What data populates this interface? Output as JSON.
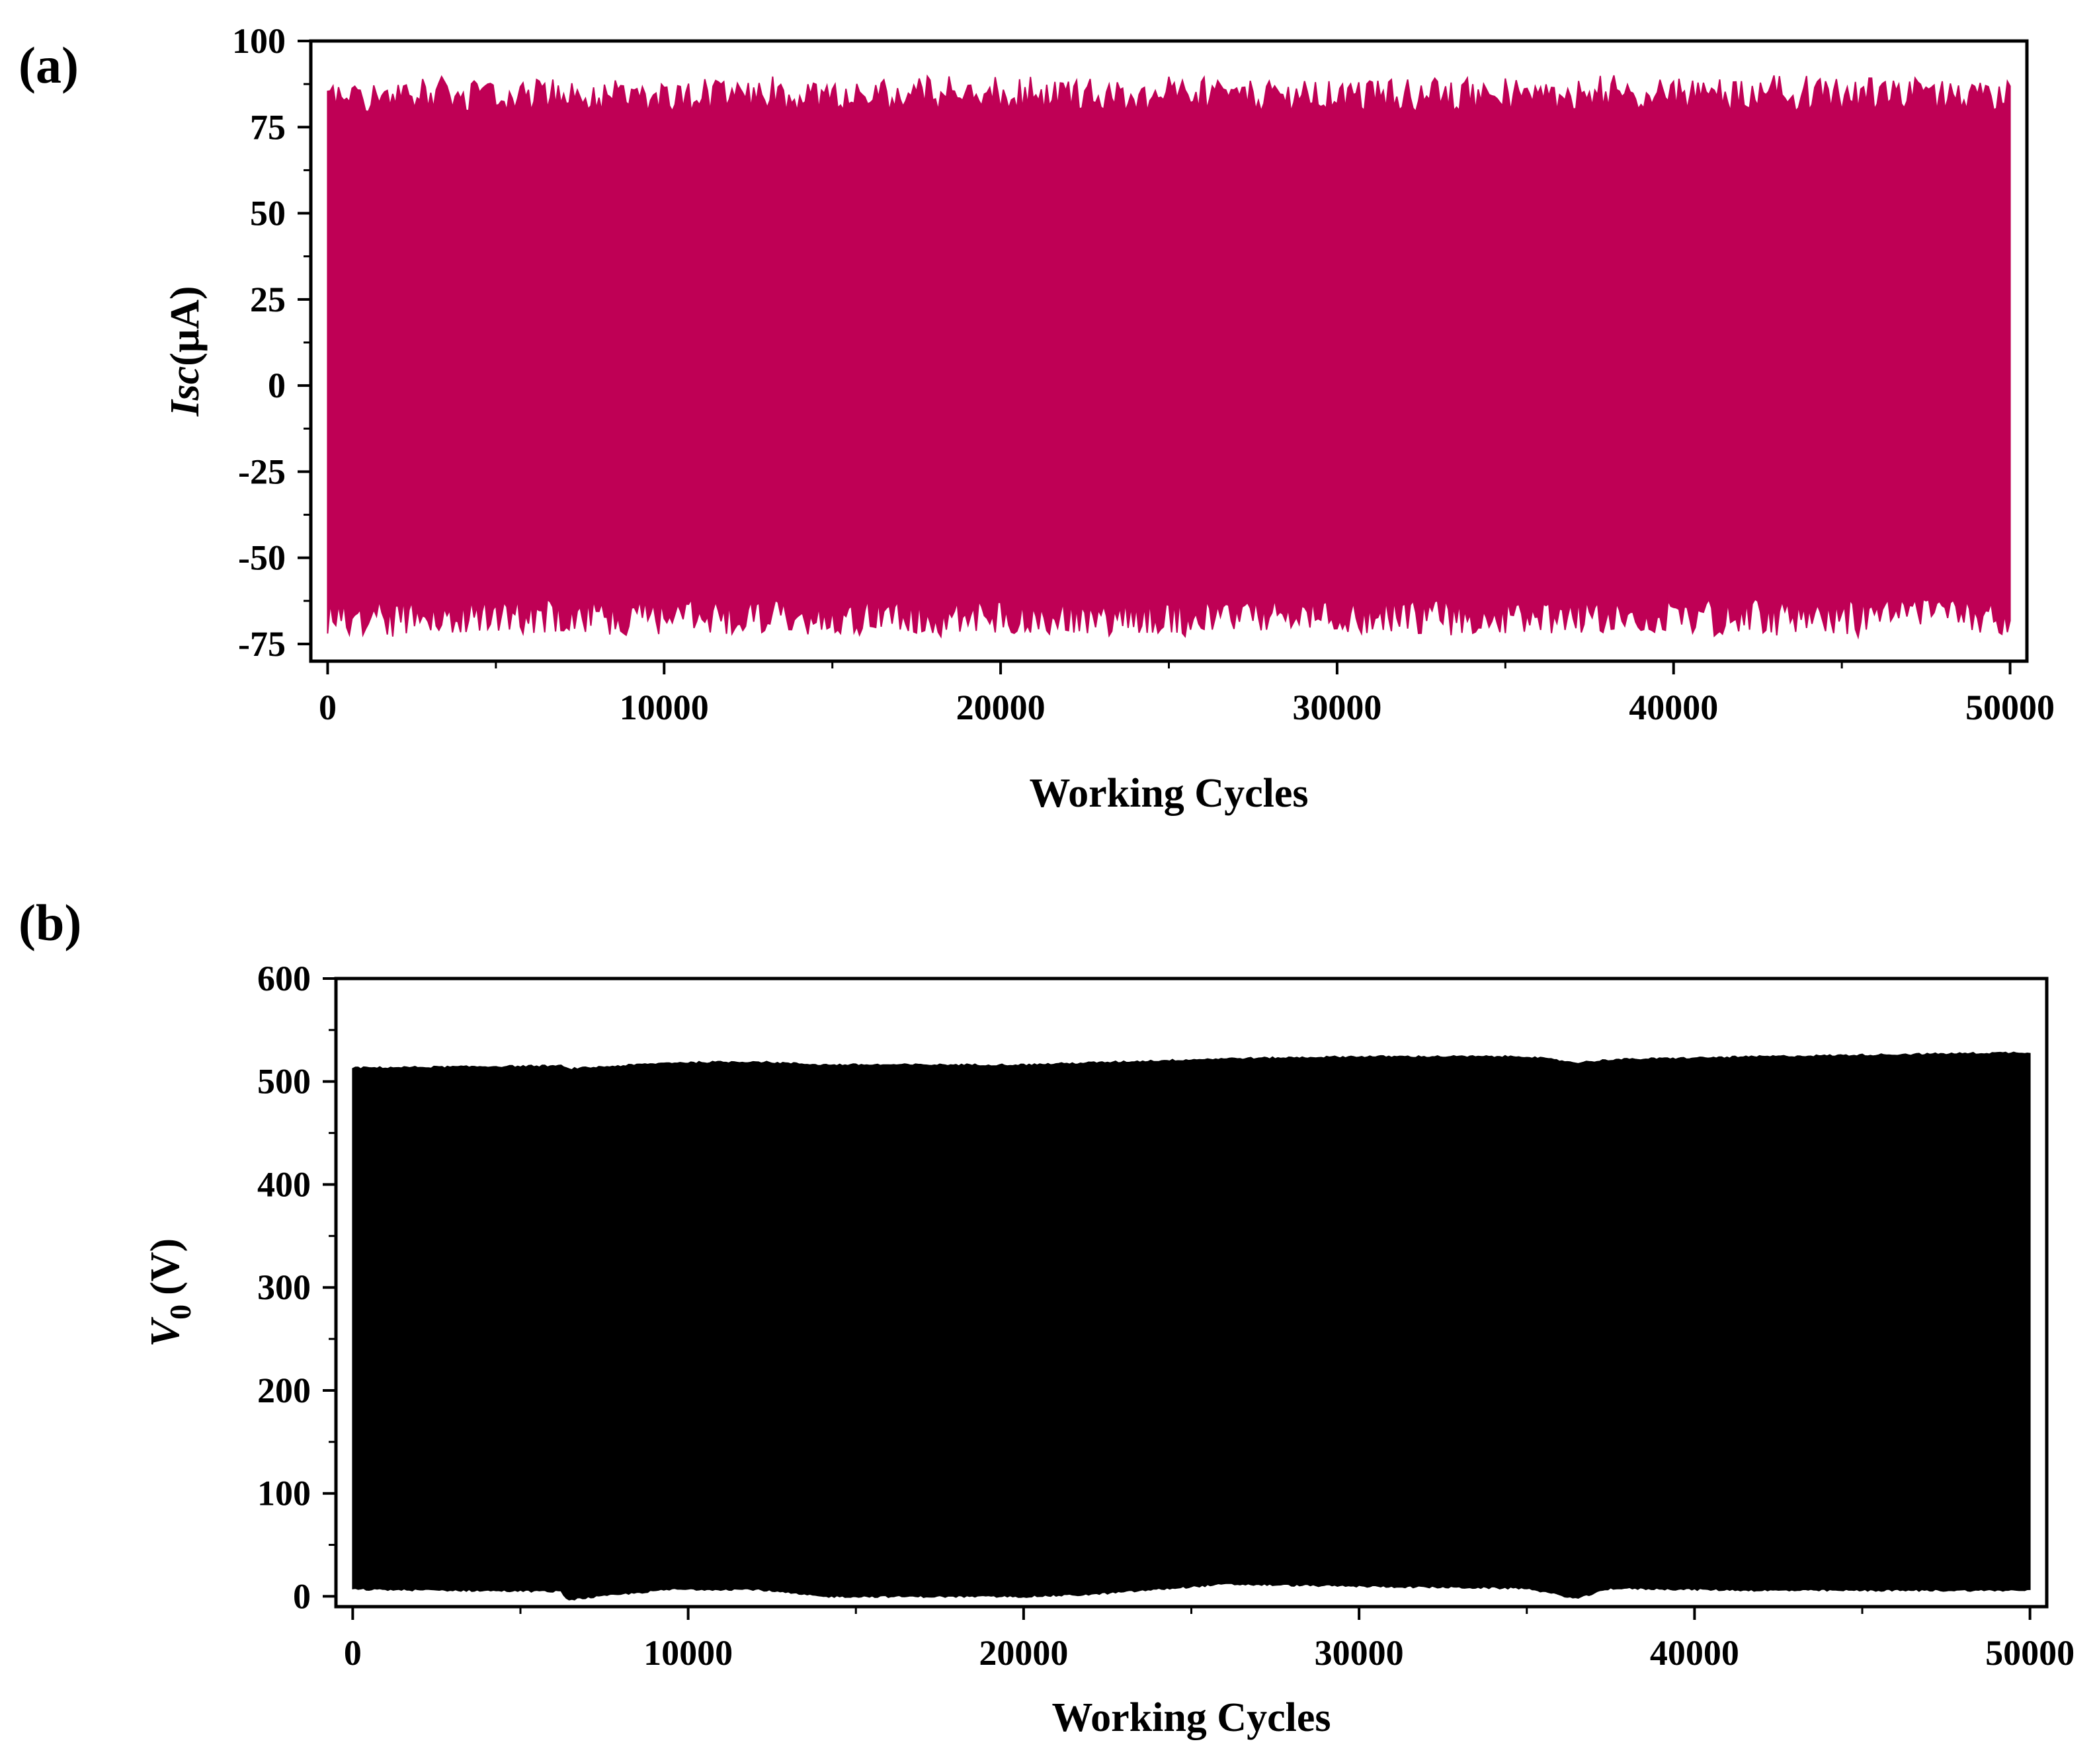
{
  "chart_data": [
    {
      "panel": "(a)",
      "type": "line",
      "title": "",
      "xlabel": "Working Cycles",
      "ylabel": {
        "main": "Isc",
        "unit": "(μA)"
      },
      "xlim": [
        -500,
        50500
      ],
      "ylim": [
        -80,
        100
      ],
      "xticks": [
        0,
        10000,
        20000,
        30000,
        40000,
        50000
      ],
      "yticks": [
        -75,
        -50,
        -25,
        0,
        25,
        50,
        75,
        100
      ],
      "xtick_labels": [
        "0",
        "10000",
        "20000",
        "30000",
        "40000",
        "50000"
      ],
      "ytick_labels": [
        "-75",
        "-50",
        "-25",
        "0",
        "25",
        "50",
        "75",
        "100"
      ],
      "series": [
        {
          "color": "#bf0055",
          "description_points": "upper/lower envelope of oscillating signal",
          "x": [
            0,
            50000
          ],
          "y_max_mean": 84,
          "y_min_mean": -67,
          "y_max_range": [
            80,
            90
          ],
          "y_min_range": [
            -73,
            -62
          ]
        }
      ],
      "grid": false
    },
    {
      "panel": "(b)",
      "type": "line",
      "title": "",
      "xlabel": "Working Cycles",
      "ylabel": {
        "main": "V",
        "sub": "0",
        "unit": "(V)"
      },
      "xlim": [
        -500,
        50500
      ],
      "ylim": [
        -10,
        600
      ],
      "xticks": [
        0,
        10000,
        20000,
        30000,
        40000,
        50000
      ],
      "yticks": [
        0,
        100,
        200,
        300,
        400,
        500,
        600
      ],
      "xtick_labels": [
        "0",
        "10000",
        "20000",
        "30000",
        "40000",
        "50000"
      ],
      "ytick_labels": [
        "0",
        "100",
        "200",
        "300",
        "400",
        "500",
        "600"
      ],
      "series": [
        {
          "color": "#000000",
          "x": [
            0,
            6200,
            6400,
            9500,
            12000,
            14000,
            18000,
            20000,
            22000,
            26000,
            30000,
            35000,
            36500,
            37500,
            42000,
            50000
          ],
          "y_max": [
            513,
            515,
            512,
            518,
            519,
            516,
            516,
            516,
            518,
            522,
            524,
            524,
            518,
            521,
            524,
            528
          ],
          "y_min": [
            7,
            5,
            -3,
            7,
            7,
            0,
            0,
            0,
            2,
            12,
            10,
            8,
            -2,
            8,
            6,
            6
          ]
        }
      ],
      "grid": false
    }
  ]
}
